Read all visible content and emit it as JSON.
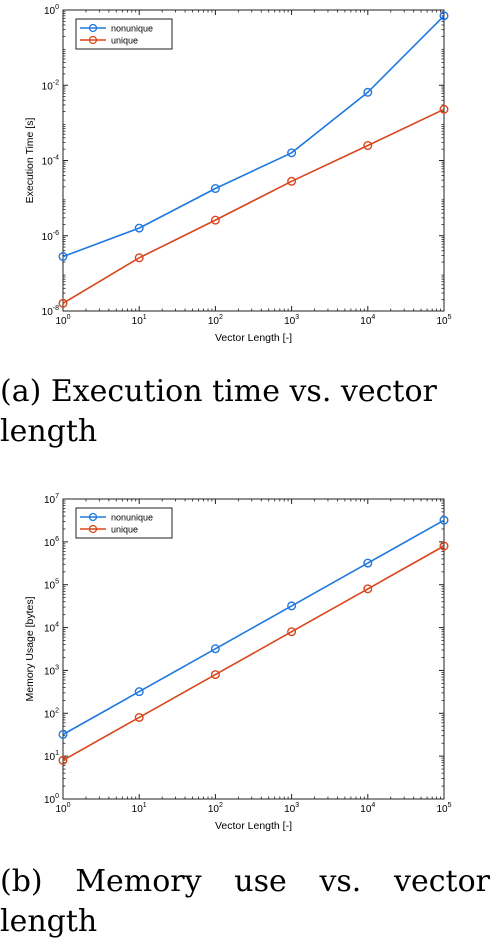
{
  "chart_data": [
    {
      "type": "line",
      "xscale": "log",
      "yscale": "log",
      "x": [
        1,
        10,
        100,
        1000,
        10000,
        100000
      ],
      "xlabel": "Vector Length [-]",
      "ylabel": "Execution Time [s]",
      "xlim": [
        1,
        100000
      ],
      "ylim": [
        1e-08,
        1
      ],
      "x_tick_exponents": [
        "0",
        "1",
        "2",
        "3",
        "4",
        "5"
      ],
      "y_tick_exponents": [
        "-8",
        "-6",
        "-4",
        "-2",
        "0"
      ],
      "legend_position": "top-left",
      "grid": false,
      "series": [
        {
          "name": "nonunique",
          "color": "#1f78e0",
          "values": [
            2.8e-07,
            1.6e-06,
            1.8e-05,
            0.00016,
            0.0065,
            0.7
          ]
        },
        {
          "name": "unique",
          "color": "#d9461c",
          "values": [
            1.6e-08,
            2.6e-07,
            2.6e-06,
            2.8e-05,
            0.00025,
            0.0023
          ]
        }
      ]
    },
    {
      "type": "line",
      "xscale": "log",
      "yscale": "log",
      "x": [
        1,
        10,
        100,
        1000,
        10000,
        100000
      ],
      "xlabel": "Vector Length [-]",
      "ylabel": "Memory Usage [bytes]",
      "xlim": [
        1,
        100000
      ],
      "ylim": [
        1,
        10000000
      ],
      "x_tick_exponents": [
        "0",
        "1",
        "2",
        "3",
        "4",
        "5"
      ],
      "y_tick_exponents": [
        "0",
        "1",
        "2",
        "3",
        "4",
        "5",
        "6",
        "7"
      ],
      "legend_position": "top-left",
      "grid": false,
      "series": [
        {
          "name": "nonunique",
          "color": "#1f78e0",
          "values": [
            32,
            320,
            3200,
            32000,
            320000,
            3200000
          ]
        },
        {
          "name": "unique",
          "color": "#d9461c",
          "values": [
            8,
            80,
            800,
            8000,
            80000,
            800000
          ]
        }
      ]
    }
  ],
  "captions": {
    "a": {
      "line1": "(a) Execution time vs. vector",
      "line2": "length"
    },
    "b": {
      "line1_words": [
        "(b)",
        "Memory",
        "use",
        "vs.",
        "vector"
      ],
      "line2": "length"
    }
  }
}
